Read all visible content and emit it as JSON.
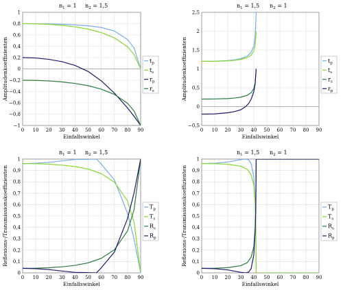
{
  "chart_data": [
    {
      "id": "p1",
      "type": "line",
      "medium_labels": [
        {
          "base": "n",
          "sub": "1",
          "rest": " = 1"
        },
        {
          "base": "n",
          "sub": "2",
          "rest": " = 1,5"
        }
      ],
      "xlabel": "Einfallswinkel",
      "ylabel": "Amplitudenkoeffizienten",
      "xlim": [
        0,
        90
      ],
      "ylim": [
        -1,
        1
      ],
      "xticks": [
        0,
        10,
        20,
        30,
        40,
        50,
        60,
        70,
        80,
        90
      ],
      "yticks": [
        "-1",
        "-0,8",
        "-0,6",
        "-0,4",
        "-0,2",
        "0",
        "0,2",
        "0,4",
        "0,6",
        "0,8",
        "1"
      ],
      "grid": true,
      "legend_position": "right",
      "series": [
        {
          "name": "t",
          "sub": "p",
          "color": "#7aaaf0",
          "x": [
            0,
            10,
            20,
            30,
            40,
            50,
            60,
            70,
            80,
            85,
            90
          ],
          "y": [
            0.8,
            0.799,
            0.796,
            0.789,
            0.779,
            0.762,
            0.732,
            0.67,
            0.52,
            0.37,
            0.0
          ]
        },
        {
          "name": "t",
          "sub": "s",
          "color": "#88d830",
          "x": [
            0,
            10,
            20,
            30,
            40,
            50,
            60,
            70,
            80,
            85,
            90
          ],
          "y": [
            0.8,
            0.797,
            0.787,
            0.77,
            0.743,
            0.703,
            0.642,
            0.549,
            0.393,
            0.255,
            0.0
          ]
        },
        {
          "name": "r",
          "sub": "p",
          "color": "#1a1a6e",
          "x": [
            0,
            10,
            20,
            30,
            40,
            50,
            60,
            70,
            80,
            85,
            90
          ],
          "y": [
            0.2,
            0.193,
            0.169,
            0.128,
            0.061,
            -0.046,
            -0.212,
            -0.428,
            -0.691,
            -0.838,
            -1.0
          ]
        },
        {
          "name": "r",
          "sub": "s",
          "color": "#2a7a3a",
          "x": [
            0,
            10,
            20,
            30,
            40,
            50,
            60,
            70,
            80,
            85,
            90
          ],
          "y": [
            -0.2,
            -0.203,
            -0.213,
            -0.23,
            -0.257,
            -0.297,
            -0.358,
            -0.451,
            -0.607,
            -0.745,
            -1.0
          ]
        }
      ]
    },
    {
      "id": "p2",
      "type": "line",
      "medium_labels": [
        {
          "base": "n",
          "sub": "1",
          "rest": " = 1,5"
        },
        {
          "base": "n",
          "sub": "2",
          "rest": " = 1"
        }
      ],
      "xlabel": "Einfallswinkel",
      "ylabel": "Amplitudenkoeffizienten",
      "xlim": [
        0,
        90
      ],
      "ylim": [
        -0.5,
        2.5
      ],
      "xticks": [
        0,
        10,
        20,
        30,
        40,
        50,
        60,
        70,
        80,
        90
      ],
      "yticks": [
        "-0,5",
        "0",
        "0,5",
        "1",
        "1,5",
        "2",
        "2,5"
      ],
      "grid": true,
      "legend_position": "right",
      "series": [
        {
          "name": "t",
          "sub": "p",
          "color": "#7aaaf0",
          "x": [
            0,
            10,
            20,
            25,
            30,
            35,
            38,
            40,
            41,
            41.8
          ],
          "y": [
            1.2,
            1.205,
            1.222,
            1.24,
            1.27,
            1.34,
            1.44,
            1.6,
            1.85,
            2.5
          ]
        },
        {
          "name": "t",
          "sub": "s",
          "color": "#88d830",
          "x": [
            0,
            10,
            20,
            25,
            30,
            35,
            38,
            40,
            41,
            41.8
          ],
          "y": [
            1.2,
            1.203,
            1.213,
            1.226,
            1.25,
            1.3,
            1.37,
            1.48,
            1.62,
            2.0
          ]
        },
        {
          "name": "r",
          "sub": "s",
          "color": "#2a7a3a",
          "x": [
            0,
            10,
            20,
            25,
            30,
            35,
            38,
            40,
            41,
            41.8
          ],
          "y": [
            0.2,
            0.203,
            0.213,
            0.226,
            0.25,
            0.3,
            0.37,
            0.48,
            0.62,
            1.0
          ]
        },
        {
          "name": "r",
          "sub": "p",
          "color": "#1a1a6e",
          "x": [
            0,
            10,
            20,
            25,
            30,
            33.7,
            36,
            38,
            40,
            41,
            41.8
          ],
          "y": [
            -0.2,
            -0.193,
            -0.164,
            -0.133,
            -0.084,
            0.0,
            0.08,
            0.2,
            0.4,
            0.6,
            1.0
          ]
        }
      ]
    },
    {
      "id": "p3",
      "type": "line",
      "medium_labels": [
        {
          "base": "n",
          "sub": "1",
          "rest": " = 1"
        },
        {
          "base": "n",
          "sub": "2",
          "rest": " = 1,5"
        }
      ],
      "xlabel": "Einfallswinkel",
      "ylabel": "Reflexions-/Transmissionskoeffizienten",
      "xlim": [
        0,
        90
      ],
      "ylim": [
        0,
        1
      ],
      "xticks": [
        0,
        10,
        20,
        30,
        40,
        50,
        60,
        70,
        80,
        90
      ],
      "yticks": [
        "0",
        "0,1",
        "0,2",
        "0,3",
        "0,4",
        "0,5",
        "0,6",
        "0,7",
        "0,8",
        "0,9",
        "1"
      ],
      "grid": true,
      "legend_position": "right",
      "series": [
        {
          "name": "T",
          "sub": "p",
          "color": "#7aaaf0",
          "x": [
            0,
            10,
            20,
            30,
            40,
            50,
            56.3,
            60,
            70,
            80,
            85,
            90
          ],
          "y": [
            0.96,
            0.963,
            0.971,
            0.984,
            0.996,
            0.998,
            1.0,
            0.955,
            0.817,
            0.523,
            0.297,
            0.0
          ]
        },
        {
          "name": "T",
          "sub": "s",
          "color": "#88d830",
          "x": [
            0,
            10,
            20,
            30,
            40,
            50,
            60,
            70,
            80,
            85,
            90
          ],
          "y": [
            0.96,
            0.959,
            0.955,
            0.947,
            0.934,
            0.912,
            0.872,
            0.797,
            0.632,
            0.445,
            0.0
          ]
        },
        {
          "name": "R",
          "sub": "s",
          "color": "#2a7a3a",
          "x": [
            0,
            10,
            20,
            30,
            40,
            50,
            60,
            70,
            80,
            85,
            90
          ],
          "y": [
            0.04,
            0.041,
            0.045,
            0.053,
            0.066,
            0.088,
            0.128,
            0.203,
            0.368,
            0.555,
            1.0
          ]
        },
        {
          "name": "R",
          "sub": "p",
          "color": "#1a1a6e",
          "x": [
            0,
            10,
            20,
            30,
            40,
            50,
            56.3,
            60,
            70,
            80,
            85,
            90
          ],
          "y": [
            0.04,
            0.037,
            0.029,
            0.016,
            0.004,
            0.002,
            0.0,
            0.045,
            0.183,
            0.477,
            0.703,
            1.0
          ]
        }
      ]
    },
    {
      "id": "p4",
      "type": "line",
      "medium_labels": [
        {
          "base": "n",
          "sub": "1",
          "rest": " = 1,5"
        },
        {
          "base": "n",
          "sub": "2",
          "rest": " = 1"
        }
      ],
      "xlabel": "Einfallswinkel",
      "ylabel": "Reflexions-/Transmissionskoeffizienten",
      "xlim": [
        0,
        90
      ],
      "ylim": [
        0,
        1
      ],
      "xticks": [
        0,
        10,
        20,
        30,
        40,
        50,
        60,
        70,
        80,
        90
      ],
      "yticks": [
        "0",
        "0,1",
        "0,2",
        "0,3",
        "0,4",
        "0,5",
        "0,6",
        "0,7",
        "0,8",
        "0,9",
        "1"
      ],
      "grid": true,
      "legend_position": "right",
      "series": [
        {
          "name": "T",
          "sub": "p",
          "color": "#7aaaf0",
          "x": [
            0,
            10,
            20,
            30,
            33.7,
            36,
            38,
            40,
            41,
            41.5,
            41.8,
            90
          ],
          "y": [
            0.96,
            0.963,
            0.974,
            0.995,
            1.0,
            0.994,
            0.96,
            0.84,
            0.64,
            0.42,
            0.0,
            0.0
          ]
        },
        {
          "name": "T",
          "sub": "s",
          "color": "#88d830",
          "x": [
            0,
            10,
            20,
            30,
            35,
            38,
            40,
            41,
            41.5,
            41.8,
            90
          ],
          "y": [
            0.96,
            0.959,
            0.954,
            0.937,
            0.91,
            0.86,
            0.77,
            0.62,
            0.45,
            0.0,
            0.0
          ]
        },
        {
          "name": "R",
          "sub": "s",
          "color": "#2a7a3a",
          "x": [
            0,
            10,
            20,
            30,
            35,
            38,
            40,
            41,
            41.5,
            41.8,
            90
          ],
          "y": [
            0.04,
            0.041,
            0.046,
            0.063,
            0.09,
            0.14,
            0.23,
            0.38,
            0.55,
            1.0,
            1.0
          ]
        },
        {
          "name": "R",
          "sub": "p",
          "color": "#1a1a6e",
          "x": [
            0,
            10,
            20,
            30,
            33.7,
            36,
            38,
            40,
            41,
            41.5,
            41.8,
            90
          ],
          "y": [
            0.04,
            0.037,
            0.026,
            0.005,
            0.0,
            0.006,
            0.04,
            0.16,
            0.36,
            0.58,
            1.0,
            1.0
          ]
        }
      ]
    }
  ]
}
